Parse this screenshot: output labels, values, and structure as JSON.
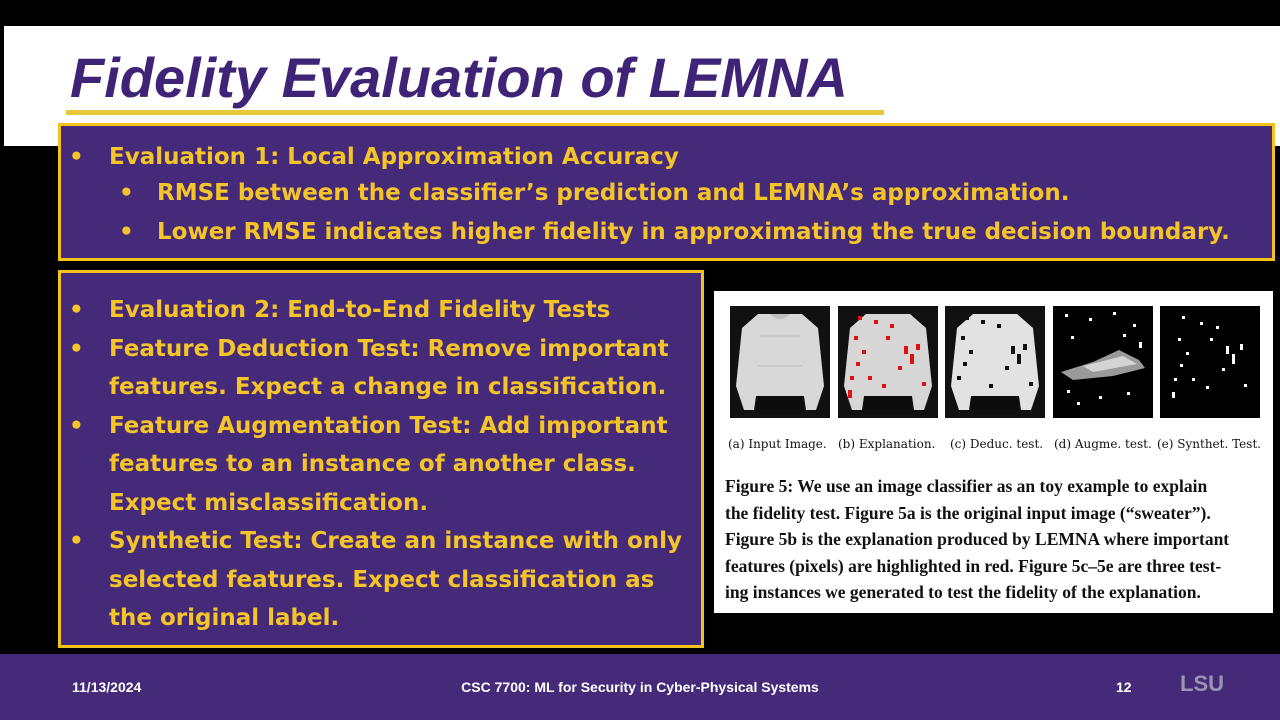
{
  "slide": {
    "title": "Fidelity Evaluation of LEMNA"
  },
  "box1": {
    "bullet_glyph": "•",
    "items": [
      {
        "level": 1,
        "text": "Evaluation 1: Local Approximation Accuracy"
      },
      {
        "level": 2,
        "text": "RMSE between the classifier’s prediction and LEMNA’s approximation."
      },
      {
        "level": 2,
        "text": "Lower RMSE indicates higher fidelity in approximating the true decision boundary."
      }
    ]
  },
  "box2": {
    "items": [
      {
        "text": "Evaluation 2: End-to-End Fidelity Tests"
      },
      {
        "text": "Feature Deduction Test: Remove important features. Expect a change in classification."
      },
      {
        "text": "Feature Augmentation Test: Add important features to an instance of another class. Expect misclassification."
      },
      {
        "text": "Synthetic Test: Create an instance with only selected features. Expect classification as the original label."
      }
    ]
  },
  "figure": {
    "subcaptions": [
      "(a) Input Image.",
      "(b) Explanation.",
      "(c) Deduc. test.",
      "(d) Augme. test.",
      "(e) Synthet. Test."
    ],
    "caption_lines": [
      "Figure 5: We use an image classifier as an toy example to explain",
      "the fidelity test. Figure 5a is the original input image (“sweater”).",
      "Figure 5b is the explanation produced by LEMNA where important",
      "features (pixels) are highlighted in red. Figure 5c–5e are three test-",
      "ing instances we generated to test the fidelity of the explanation."
    ]
  },
  "footer": {
    "date": "11/13/2024",
    "course": "CSC 7700: ML for Security in Cyber-Physical Systems",
    "page": "12",
    "logo": "LSU"
  },
  "colors": {
    "purple": "#462a7a",
    "gold": "#f5c429",
    "title": "#3f2377",
    "highlight_red": "#e01010"
  }
}
